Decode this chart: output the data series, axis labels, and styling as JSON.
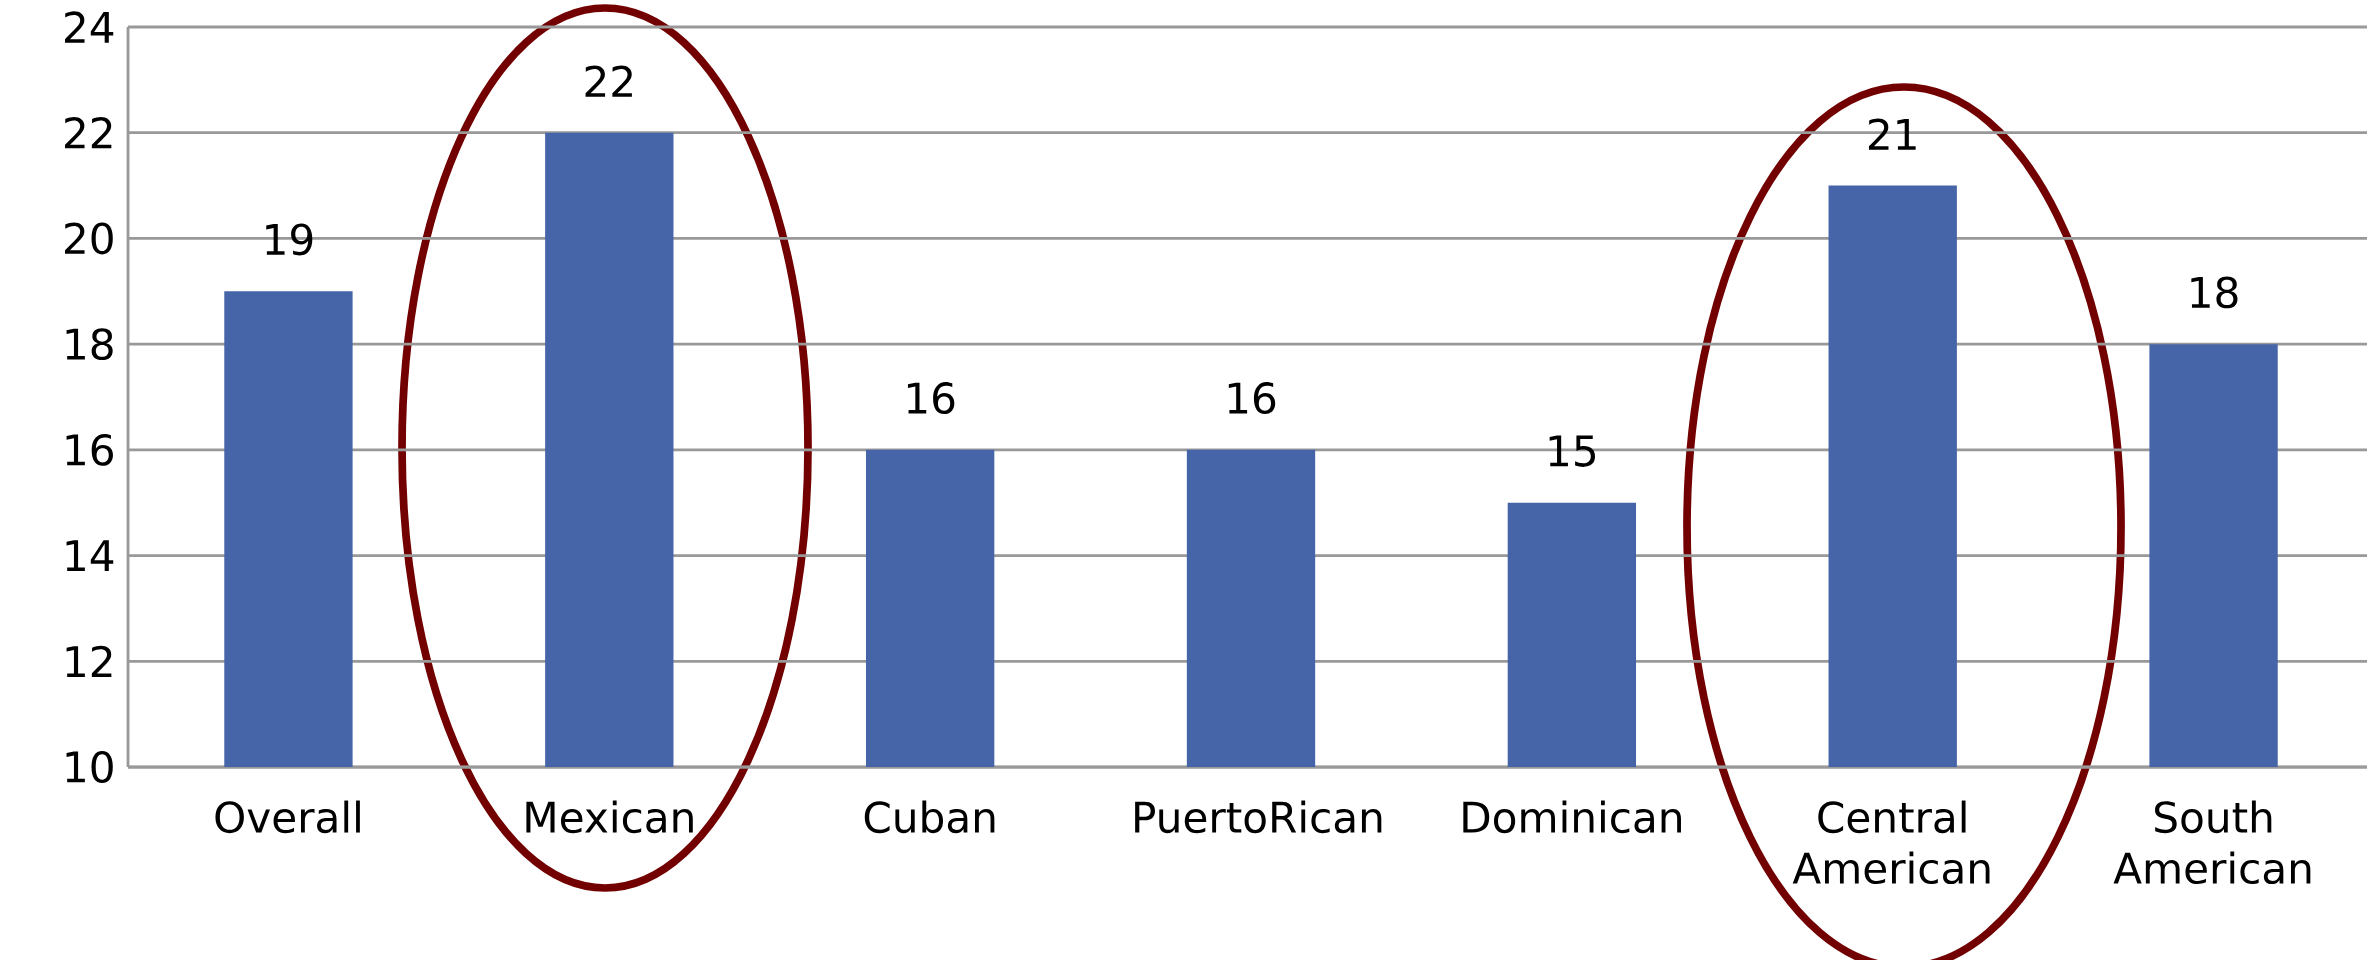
{
  "chart_data": {
    "type": "bar",
    "categories": [
      "Overall",
      "Mexican",
      "Cuban",
      "PuertoRican",
      "Dominican",
      "Central American",
      "South American"
    ],
    "values": [
      19,
      22,
      16,
      16,
      15,
      21,
      18
    ],
    "color": "#4565a8",
    "ylim": [
      10,
      24
    ],
    "yticks": [
      10,
      12,
      14,
      16,
      18,
      20,
      22,
      24
    ],
    "grid": "y",
    "data_labels": true
  }
}
